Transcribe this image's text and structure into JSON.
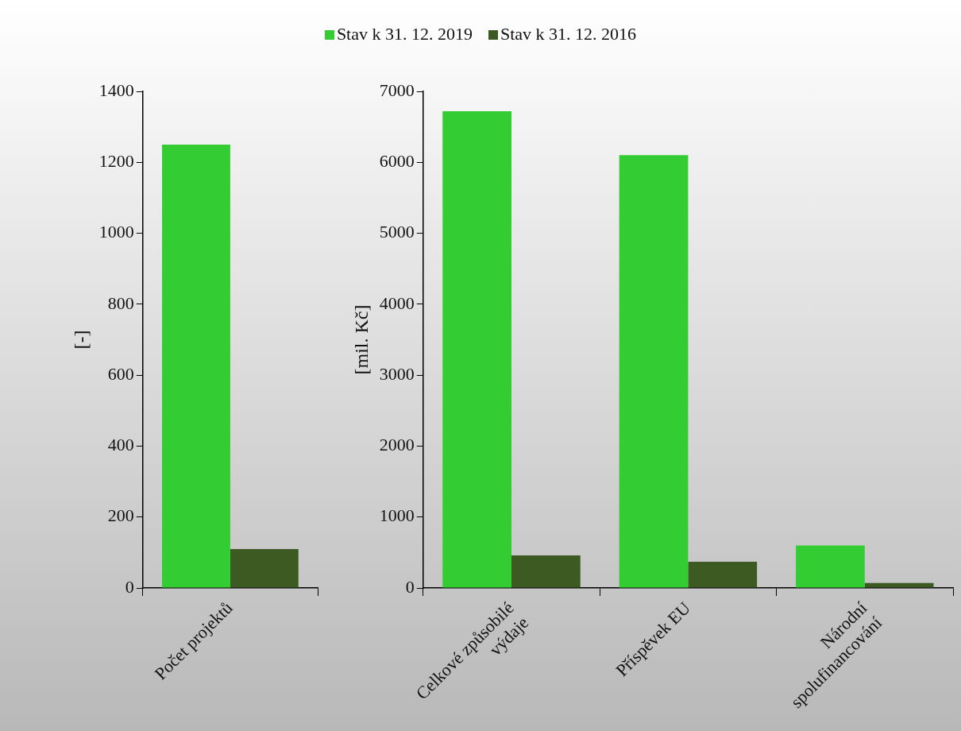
{
  "chart_data": [
    {
      "type": "bar",
      "ylabel": "[-]",
      "categories": [
        "Počet projektů"
      ],
      "series": [
        {
          "name": "Stav k 31. 12. 2019",
          "color": "#33cc33",
          "values": [
            1250
          ]
        },
        {
          "name": "Stav k 31. 12. 2016",
          "color": "#3d5a23",
          "values": [
            110
          ]
        }
      ],
      "ylim": [
        0,
        1400
      ],
      "yticks": [
        0,
        200,
        400,
        600,
        800,
        1000,
        1200,
        1400
      ],
      "grid": false,
      "legend": "top"
    },
    {
      "type": "bar",
      "ylabel": "[mil. Kč]",
      "categories": [
        "Celkové způsobilé\nvýdaje",
        "Příspěvek EU",
        "Národní\nspolufinancování"
      ],
      "series": [
        {
          "color": "#33cc33",
          "values": [
            6720,
            6100,
            600
          ]
        },
        {
          "color": "#3d5a23",
          "values": [
            460,
            370,
            70
          ]
        }
      ],
      "ylim": [
        0,
        7000
      ],
      "yticks": [
        0,
        1000,
        2000,
        3000,
        4000,
        5000,
        6000,
        7000
      ],
      "grid": false
    }
  ]
}
